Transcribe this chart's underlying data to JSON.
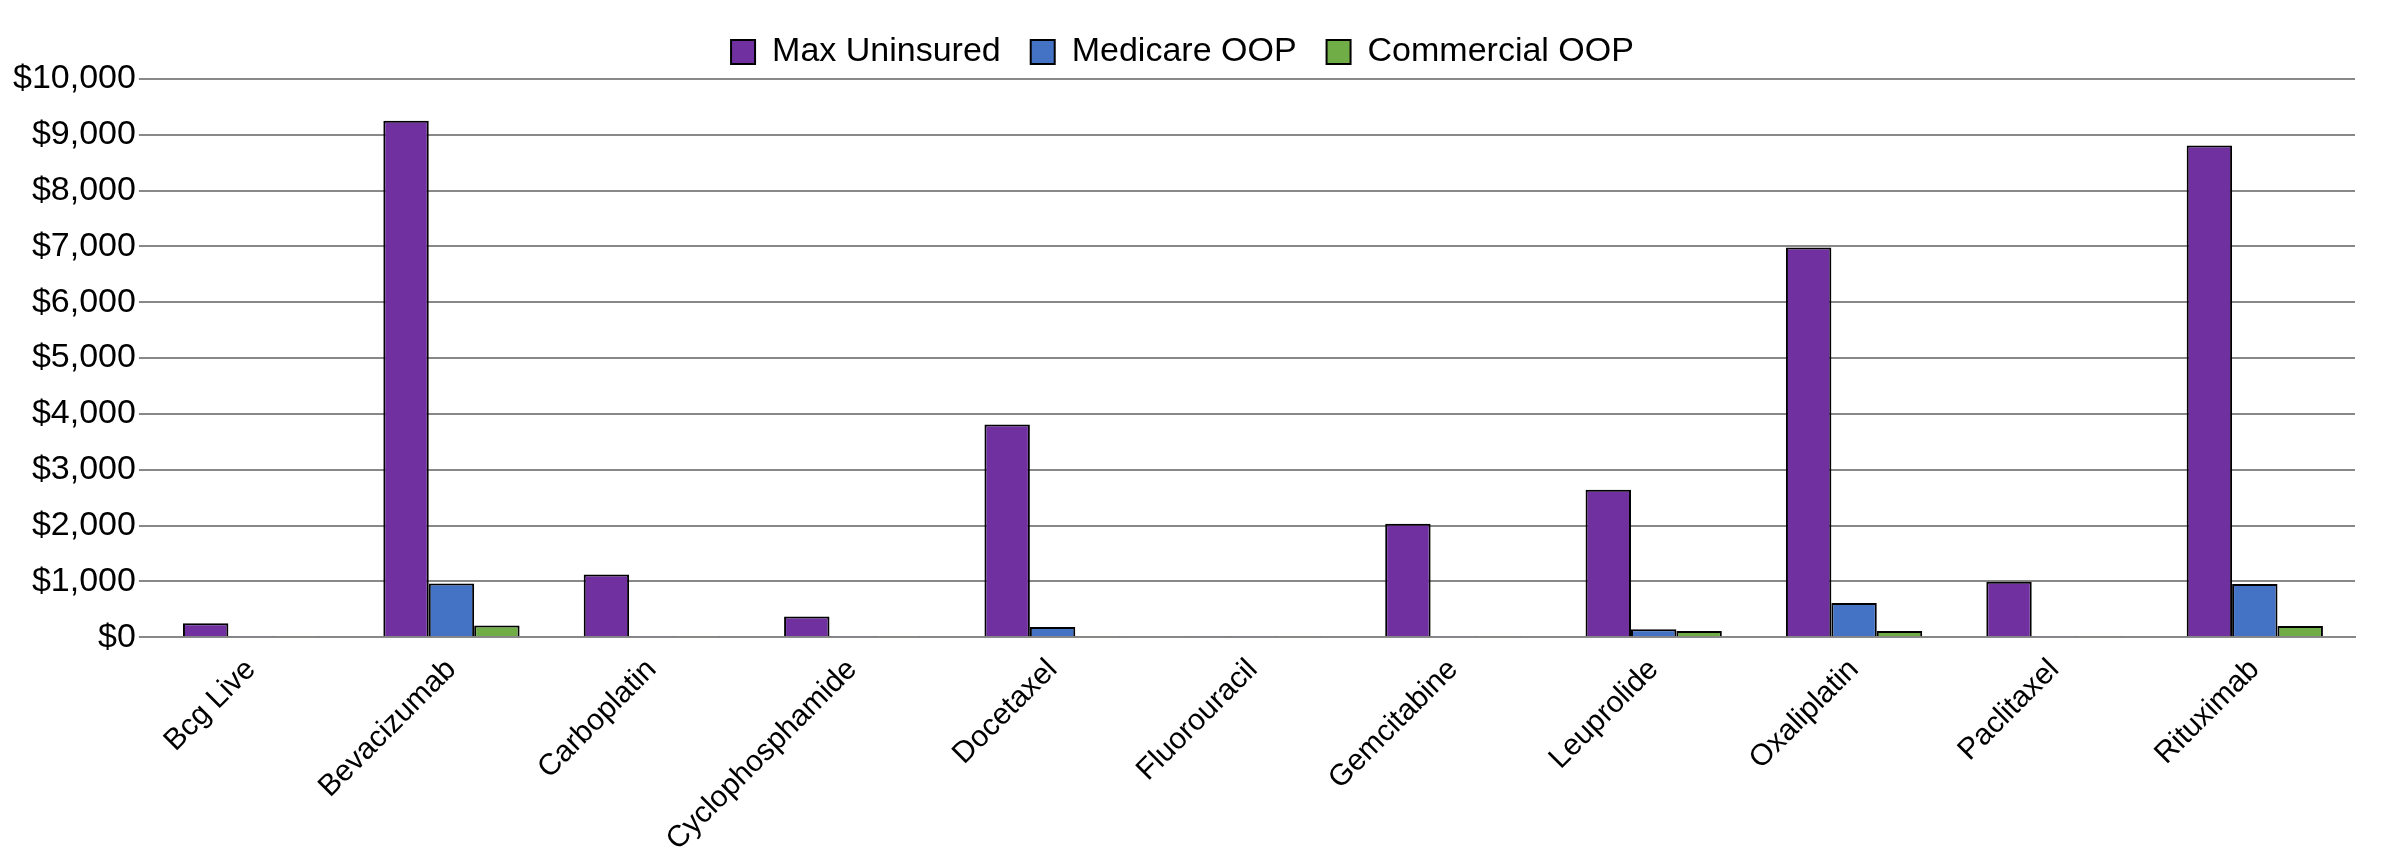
{
  "chart_data": {
    "type": "bar",
    "categories": [
      "Bcg Live",
      "Bevacizumab",
      "Carboplatin",
      "Cyclophosphamide",
      "Docetaxel",
      "Fluorouracil",
      "Gemcitabine",
      "Leuprolide",
      "Oxaliplatin",
      "Paclitaxel",
      "Rituximab"
    ],
    "series": [
      {
        "name": "Max Uninsured",
        "color": "#7030a0",
        "values": [
          250,
          9250,
          1120,
          370,
          3810,
          20,
          2030,
          2640,
          6980,
          990,
          8810
        ]
      },
      {
        "name": "Medicare OOP",
        "color": "#4472c4",
        "values": [
          20,
          960,
          20,
          20,
          180,
          20,
          20,
          140,
          610,
          20,
          950
        ]
      },
      {
        "name": "Commercial OOP",
        "color": "#70ad47",
        "values": [
          20,
          210,
          20,
          20,
          20,
          20,
          20,
          110,
          110,
          20,
          200
        ]
      }
    ],
    "ylim": [
      0,
      10000
    ],
    "yticks": [
      {
        "value": 0,
        "label": "$0"
      },
      {
        "value": 1000,
        "label": "$1,000"
      },
      {
        "value": 2000,
        "label": "$2,000"
      },
      {
        "value": 3000,
        "label": "$3,000"
      },
      {
        "value": 4000,
        "label": "$4,000"
      },
      {
        "value": 5000,
        "label": "$5,000"
      },
      {
        "value": 6000,
        "label": "$6,000"
      },
      {
        "value": 7000,
        "label": "$7,000"
      },
      {
        "value": 8000,
        "label": "$8,000"
      },
      {
        "value": 9000,
        "label": "$9,000"
      },
      {
        "value": 10000,
        "label": "$10,000"
      }
    ],
    "grid": "y",
    "legend": "top"
  }
}
